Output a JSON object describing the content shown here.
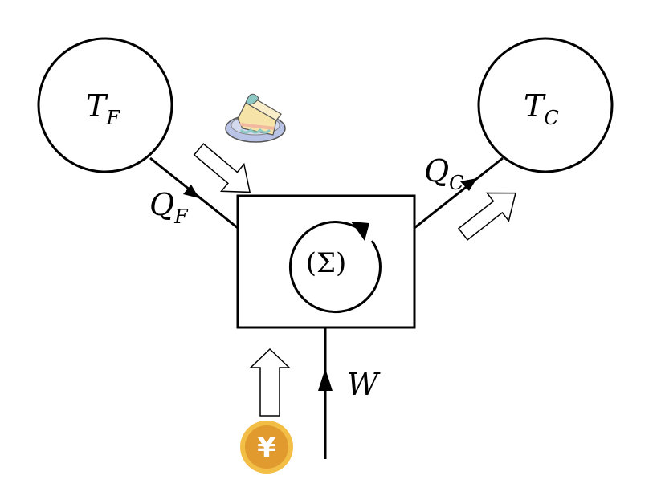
{
  "labels": {
    "hot_reservoir": {
      "main": "T",
      "sub": "F"
    },
    "cold_reservoir": {
      "main": "T",
      "sub": "C"
    },
    "heat_in": {
      "main": "Q",
      "sub": "F"
    },
    "heat_out": {
      "main": "Q",
      "sub": "C"
    },
    "work": "W",
    "system": "(Σ)"
  },
  "icons": {
    "cake": "cake-icon",
    "coin": "yen-coin-icon",
    "coin_symbol": "¥"
  },
  "colors": {
    "stroke": "#000000",
    "coin_fill": "#E09A2E",
    "coin_rim": "#F2BE45",
    "cake_plate": "#B9C3E6",
    "cake_sponge": "#F5E3A8",
    "cake_cream": "#F2B9A0",
    "cake_frosting": "#8DC9C4"
  }
}
